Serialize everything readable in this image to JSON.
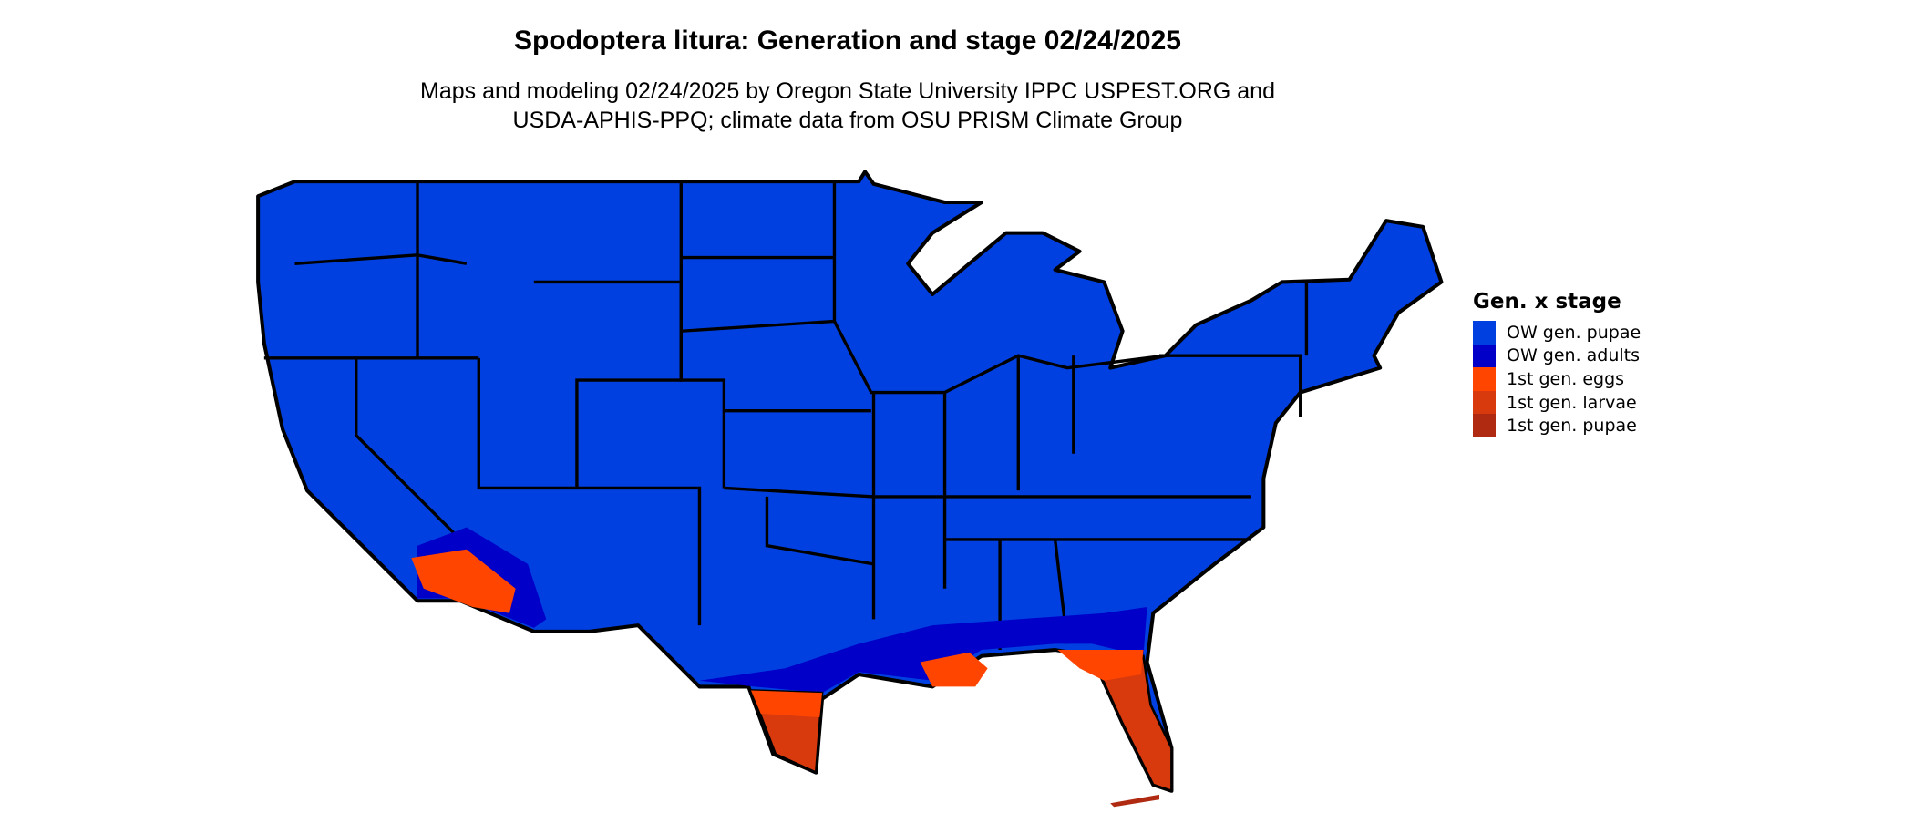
{
  "title": "Spodoptera litura: Generation and stage 02/24/2025",
  "subtitle_line1": "Maps and modeling 02/24/2025 by Oregon State University IPPC USPEST.ORG and",
  "subtitle_line2": "USDA-APHIS-PPQ; climate data from OSU PRISM Climate Group",
  "legend": {
    "title": "Gen. x stage",
    "items": [
      {
        "label": "OW gen. pupae",
        "color": "#0040E0"
      },
      {
        "label": "OW gen. adults",
        "color": "#0000C8"
      },
      {
        "label": "1st gen. eggs",
        "color": "#FF4500"
      },
      {
        "label": "1st gen. larvae",
        "color": "#D83A0E"
      },
      {
        "label": "1st gen. pupae",
        "color": "#B02A12"
      }
    ]
  }
}
